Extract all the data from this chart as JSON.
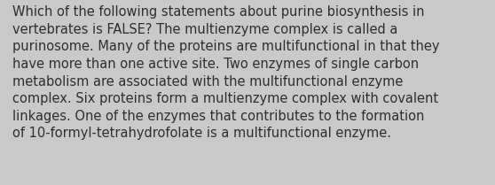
{
  "text": "Which of the following statements about purine biosynthesis in\nvertebrates is FALSE? The multienzyme complex is called a\npurinosome. Many of the proteins are multifunctional in that they\nhave more than one active site. Two enzymes of single carbon\nmetabolism are associated with the multifunctional enzyme\ncomplex. Six proteins form a multienzyme complex with covalent\nlinkages. One of the enzymes that contributes to the formation\nof 10-formyl-tetrahydrofolate is a multifunctional enzyme.",
  "background_color": "#c9c9c9",
  "text_color": "#2e2e2e",
  "font_size": 10.5,
  "fig_width": 5.58,
  "fig_height": 2.09,
  "dpi": 100
}
